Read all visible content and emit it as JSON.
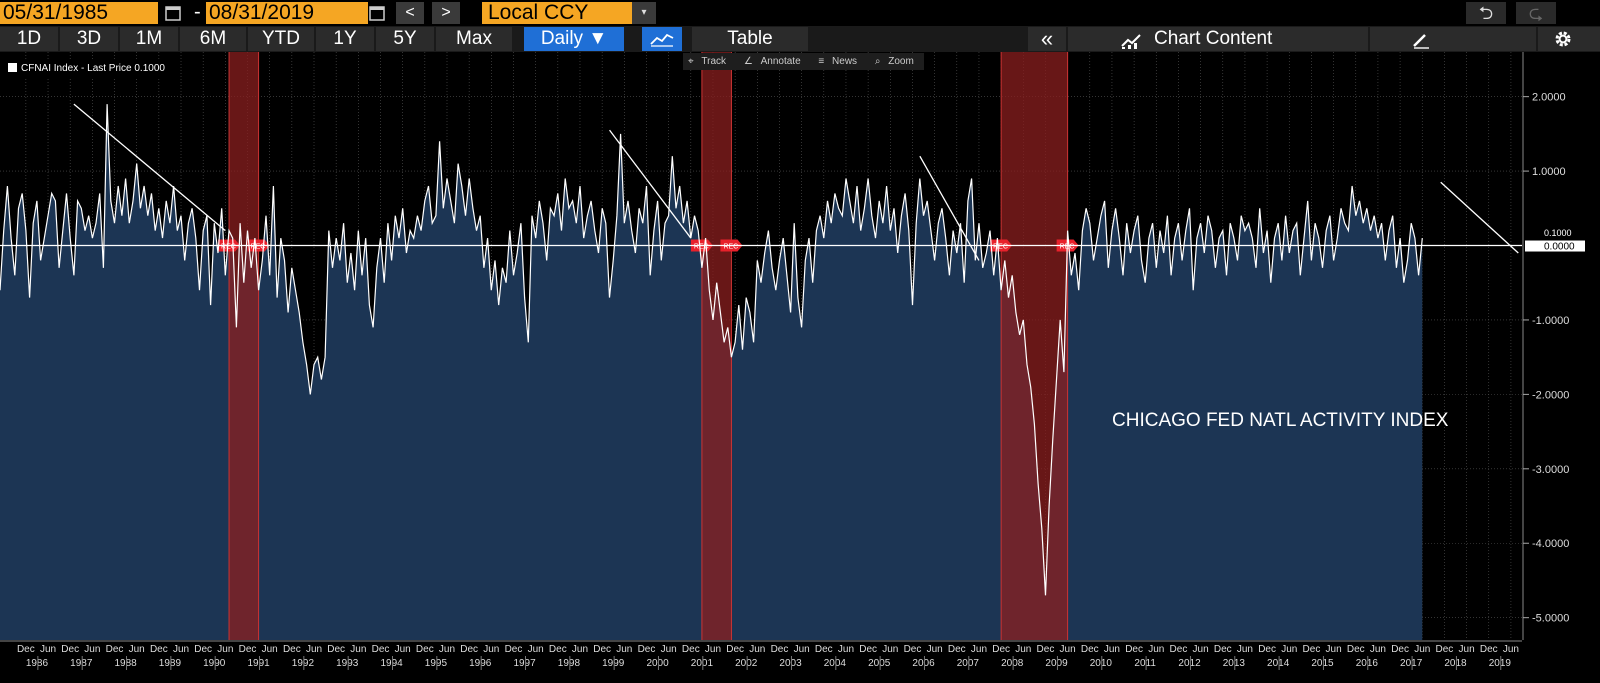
{
  "toolbar": {
    "start_date": "05/31/1985",
    "dash": "-",
    "end_date": "08/31/2019",
    "prev": "<",
    "next": ">",
    "currency": "Local CCY",
    "currency_dropdown": "▾",
    "undo": "⮌",
    "redo": "⮎"
  },
  "periods": [
    "1D",
    "3D",
    "1M",
    "6M",
    "YTD",
    "1Y",
    "5Y",
    "Max"
  ],
  "frequency": "Daily ▼",
  "table_label": "Table",
  "collapse": "«",
  "chart_content": "Chart Content",
  "legend_label": "CFNAI Index - Last Price 0.1000",
  "tools": [
    "Track",
    "Annotate",
    "News",
    "Zoom"
  ],
  "annotation": "CHICAGO FED NATL ACTIVITY INDEX",
  "rec_label": "REC",
  "last_price_tags": [
    "0.1000",
    "0.0000"
  ],
  "colors": {
    "accent": "#f5a623",
    "area": "#1c3554",
    "line": "#ffffff",
    "recession": "#8b1f1f",
    "active_tab": "#1f6fd6"
  },
  "chart_data": {
    "type": "area",
    "series": [
      {
        "name": "CFNAI Index",
        "x_start": "1985-05",
        "monthly": [
          -0.6,
          0.2,
          0.8,
          0.1,
          -0.4,
          0.5,
          0.7,
          0.2,
          -0.7,
          0.3,
          0.6,
          -0.2,
          0.1,
          0.4,
          0.7,
          0.6,
          -0.3,
          0.2,
          0.7,
          0.1,
          -0.4,
          0.6,
          0.5,
          0.2,
          0.4,
          0.1,
          0.3,
          0.7,
          -0.3,
          1.9,
          0.6,
          0.3,
          0.8,
          0.4,
          0.9,
          0.3,
          0.6,
          1.1,
          0.5,
          0.8,
          0.4,
          0.7,
          0.2,
          0.5,
          0.1,
          0.6,
          0.3,
          0.8,
          0.2,
          0.4,
          -0.2,
          0.3,
          0.5,
          0.1,
          -0.6,
          0.2,
          0.4,
          -0.8,
          0.3,
          -0.1,
          0.5,
          -0.4,
          0.2,
          0.1,
          -1.1,
          0.3,
          -0.5,
          0.2,
          -0.3,
          0.1,
          -0.6,
          -0.2,
          0.4,
          -0.4,
          0.8,
          -0.7,
          0.1,
          -0.2,
          -0.9,
          -0.3,
          -0.6,
          -0.9,
          -1.3,
          -1.6,
          -2.0,
          -1.6,
          -1.5,
          -1.8,
          -1.5,
          0.2,
          -0.3,
          0.1,
          -0.2,
          0.3,
          -0.5,
          -0.1,
          -0.6,
          0.2,
          -0.4,
          0.1,
          -0.8,
          -1.1,
          -0.3,
          0.1,
          -0.5,
          0.3,
          -0.2,
          0.4,
          0.1,
          0.5,
          -0.1,
          0.2,
          0.1,
          0.4,
          0.2,
          0.6,
          0.8,
          0.3,
          0.4,
          1.4,
          0.5,
          0.9,
          0.6,
          0.3,
          1.1,
          0.8,
          0.4,
          0.9,
          0.5,
          0.2,
          0.4,
          -0.3,
          0.1,
          -0.6,
          -0.2,
          -0.8,
          -0.3,
          -0.5,
          0.2,
          -0.4,
          -0.1,
          0.3,
          -0.7,
          -1.3,
          0.4,
          0.1,
          0.6,
          0.3,
          -0.2,
          0.5,
          0.4,
          0.7,
          0.2,
          0.9,
          0.5,
          0.6,
          0.3,
          0.8,
          0.1,
          0.4,
          0.6,
          0.2,
          -0.1,
          0.5,
          0.3,
          -0.7,
          -0.2,
          0.4,
          1.5,
          0.3,
          0.6,
          0.2,
          -0.1,
          0.5,
          0.3,
          0.8,
          -0.4,
          0.2,
          0.6,
          -0.2,
          0.3,
          0.4,
          1.2,
          0.5,
          0.8,
          0.3,
          0.6,
          0.1,
          0.4,
          0.2,
          -0.3,
          0.1,
          -0.6,
          -1.0,
          -0.5,
          -0.9,
          -1.3,
          -1.1,
          -1.5,
          -1.3,
          -0.8,
          -1.4,
          -0.7,
          -0.9,
          -1.3,
          -0.2,
          -0.5,
          -0.1,
          0.2,
          -0.3,
          -0.6,
          -0.2,
          0.1,
          -0.4,
          -0.9,
          0.3,
          -0.7,
          -1.1,
          -0.2,
          0.1,
          -0.5,
          0.2,
          0.4,
          0.1,
          0.6,
          0.3,
          0.7,
          0.5,
          0.4,
          0.9,
          0.6,
          0.3,
          0.8,
          0.2,
          0.5,
          0.9,
          0.4,
          0.1,
          0.6,
          0.3,
          0.8,
          0.2,
          0.5,
          -0.1,
          0.4,
          0.7,
          0.2,
          -0.8,
          0.3,
          0.9,
          0.4,
          0.6,
          0.2,
          -0.2,
          0.3,
          0.5,
          0.1,
          -0.4,
          0.2,
          -0.1,
          0.3,
          -0.5,
          0.6,
          0.9,
          -0.2,
          0.3,
          -0.3,
          -0.1,
          0.2,
          -0.4,
          0.1,
          -0.6,
          -0.2,
          -0.7,
          -0.4,
          -0.9,
          -1.2,
          -1.0,
          -1.6,
          -1.9,
          -2.4,
          -3.2,
          -3.8,
          -4.7,
          -3.5,
          -2.6,
          -1.8,
          -1.0,
          -1.7,
          0.2,
          -0.4,
          -0.1,
          -0.6,
          0.2,
          0.5,
          0.3,
          -0.2,
          0.1,
          0.4,
          0.6,
          -0.3,
          0.2,
          0.5,
          0.1,
          -0.4,
          0.3,
          -0.1,
          0.2,
          0.4,
          -0.2,
          -0.5,
          0.1,
          0.3,
          -0.3,
          0.2,
          -0.1,
          0.4,
          -0.4,
          0.1,
          0.3,
          -0.2,
          0.2,
          0.5,
          -0.6,
          0.1,
          0.3,
          -0.1,
          0.4,
          0.2,
          -0.3,
          0.1,
          0.2,
          -0.4,
          0.3,
          0.1,
          -0.2,
          0.4,
          0.2,
          0.3,
          0.1,
          -0.3,
          0.5,
          -0.1,
          0.2,
          -0.5,
          0.1,
          0.3,
          -0.2,
          0.4,
          -0.1,
          0.2,
          0.3,
          -0.4,
          0.1,
          0.6,
          -0.2,
          0.3,
          0.1,
          -0.3,
          0.2,
          0.4,
          -0.2,
          0.1,
          0.5,
          0.3,
          0.2,
          0.8,
          0.4,
          0.6,
          0.3,
          0.5,
          0.2,
          0.4,
          0.1,
          0.3,
          -0.2,
          0.2,
          0.4,
          -0.3,
          0.1,
          -0.5,
          -0.2,
          0.3,
          0.1,
          -0.4,
          0.1
        ]
      }
    ],
    "ylim": [
      -5.3,
      2.6
    ],
    "yticks": [
      "2.0000",
      "1.0000",
      "-1.0000",
      "-2.0000",
      "-3.0000",
      "-4.0000",
      "-5.0000"
    ],
    "recessions": [
      [
        "1990-07",
        "1991-03"
      ],
      [
        "2001-03",
        "2001-11"
      ],
      [
        "2007-12",
        "2009-06"
      ]
    ],
    "x_tick_labels": [
      "Dec",
      "Jun"
    ],
    "year_labels": [
      "1986",
      "1987",
      "1988",
      "1989",
      "1990",
      "1991",
      "1992",
      "1993",
      "1994",
      "1995",
      "1996",
      "1997",
      "1998",
      "1999",
      "2000",
      "2001",
      "2002",
      "2003",
      "2004",
      "2005",
      "2006",
      "2007",
      "2008",
      "2009",
      "2010",
      "2011",
      "2012",
      "2013",
      "2014",
      "2015",
      "2016",
      "2017",
      "2018",
      "2019"
    ],
    "trendlines": [
      {
        "from": [
          "1987-01",
          1.9
        ],
        "to": [
          "1990-06",
          0.2
        ]
      },
      {
        "from": [
          "1999-02",
          1.55
        ],
        "to": [
          "2000-12",
          0.1
        ]
      },
      {
        "from": [
          "2006-02",
          1.2
        ],
        "to": [
          "2007-06",
          -0.2
        ]
      },
      {
        "from": [
          "2017-11",
          0.85
        ],
        "to": [
          "2019-08",
          -0.1
        ]
      }
    ],
    "grid": true
  }
}
